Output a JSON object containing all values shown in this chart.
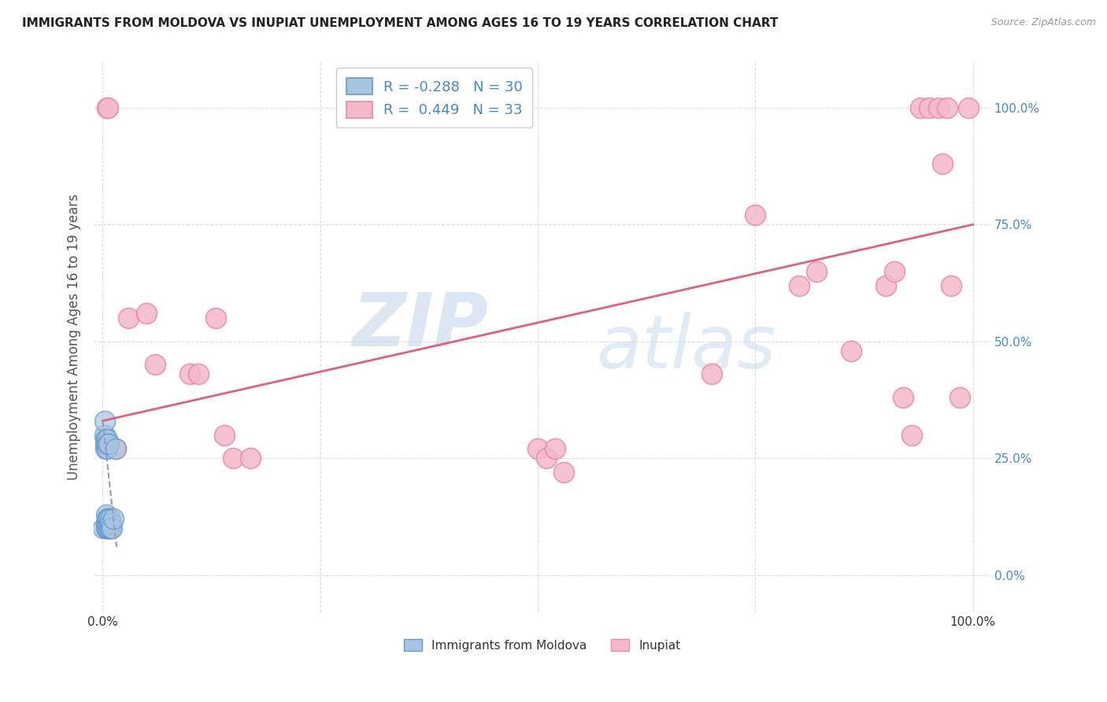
{
  "title": "IMMIGRANTS FROM MOLDOVA VS INUPIAT UNEMPLOYMENT AMONG AGES 16 TO 19 YEARS CORRELATION CHART",
  "source": "Source: ZipAtlas.com",
  "ylabel": "Unemployment Among Ages 16 to 19 years",
  "legend_blue_r": "-0.288",
  "legend_blue_n": "30",
  "legend_pink_r": "0.449",
  "legend_pink_n": "33",
  "legend_blue_label": "Immigrants from Moldova",
  "legend_pink_label": "Inupiat",
  "xlim": [
    -0.01,
    1.02
  ],
  "ylim": [
    -0.08,
    1.1
  ],
  "yticks": [
    0.0,
    0.25,
    0.5,
    0.75,
    1.0
  ],
  "xticks": [
    0.0,
    0.25,
    0.5,
    0.75,
    1.0
  ],
  "background_color": "#ffffff",
  "grid_color": "#dddddd",
  "watermark_text": "ZIP",
  "watermark_text2": "atlas",
  "watermark_color": "#c5d8ec",
  "blue_color": "#a8c4e0",
  "pink_color": "#f4b8cb",
  "blue_edge_color": "#6699cc",
  "pink_edge_color": "#e88aaa",
  "blue_line_color": "#9999bb",
  "pink_line_color": "#e06080",
  "title_color": "#222222",
  "source_color": "#999999",
  "axis_label_color": "#555555",
  "right_tick_color": "#4488cc",
  "legend_r_color": "#000000",
  "legend_val_color": "#4488cc",
  "blue_scatter_x": [
    0.001,
    0.002,
    0.002,
    0.003,
    0.003,
    0.003,
    0.004,
    0.004,
    0.004,
    0.004,
    0.005,
    0.005,
    0.005,
    0.005,
    0.005,
    0.006,
    0.006,
    0.006,
    0.006,
    0.007,
    0.007,
    0.008,
    0.008,
    0.009,
    0.009,
    0.01,
    0.01,
    0.011,
    0.012,
    0.015
  ],
  "blue_scatter_y": [
    0.1,
    0.3,
    0.33,
    0.27,
    0.28,
    0.29,
    0.1,
    0.11,
    0.13,
    0.28,
    0.1,
    0.11,
    0.12,
    0.27,
    0.29,
    0.1,
    0.11,
    0.12,
    0.28,
    0.12,
    0.28,
    0.1,
    0.11,
    0.1,
    0.12,
    0.1,
    0.11,
    0.1,
    0.12,
    0.27
  ],
  "pink_scatter_x": [
    0.005,
    0.006,
    0.015,
    0.03,
    0.05,
    0.06,
    0.1,
    0.11,
    0.13,
    0.14,
    0.15,
    0.17,
    0.5,
    0.51,
    0.52,
    0.53,
    0.7,
    0.75,
    0.8,
    0.82,
    0.86,
    0.9,
    0.91,
    0.92,
    0.93,
    0.94,
    0.95,
    0.96,
    0.965,
    0.97,
    0.975,
    0.985,
    0.995
  ],
  "pink_scatter_y": [
    1.0,
    1.0,
    0.27,
    0.55,
    0.56,
    0.45,
    0.43,
    0.43,
    0.55,
    0.3,
    0.25,
    0.25,
    0.27,
    0.25,
    0.27,
    0.22,
    0.43,
    0.77,
    0.62,
    0.65,
    0.48,
    0.62,
    0.65,
    0.38,
    0.3,
    1.0,
    1.0,
    1.0,
    0.88,
    1.0,
    0.62,
    0.38,
    1.0
  ],
  "pink_regline_x": [
    0.0,
    1.0
  ],
  "pink_regline_y": [
    0.33,
    0.75
  ],
  "blue_regline_x": [
    0.0,
    0.016
  ],
  "blue_regline_y": [
    0.33,
    0.06
  ]
}
